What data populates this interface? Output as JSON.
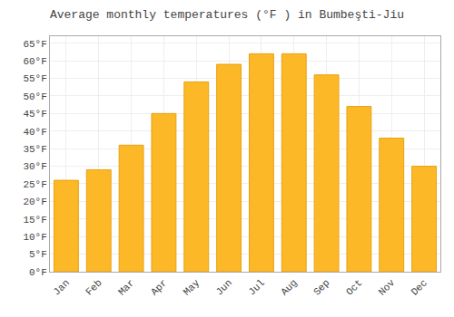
{
  "chart_data": {
    "type": "bar",
    "title": "Average monthly temperatures (°F ) in Bumbeşti-Jiu",
    "categories": [
      "Jan",
      "Feb",
      "Mar",
      "Apr",
      "May",
      "Jun",
      "Jul",
      "Aug",
      "Sep",
      "Oct",
      "Nov",
      "Dec"
    ],
    "values": [
      26,
      29,
      36,
      45,
      54,
      59,
      62,
      62,
      56,
      47,
      38,
      30
    ],
    "color": "#FDB827",
    "ylim": [
      0,
      67
    ],
    "yticks": [
      {
        "value": 0,
        "label": "0°F"
      },
      {
        "value": 5,
        "label": "5°F"
      },
      {
        "value": 10,
        "label": "10°F"
      },
      {
        "value": 15,
        "label": "15°F"
      },
      {
        "value": 20,
        "label": "20°F"
      },
      {
        "value": 25,
        "label": "25°F"
      },
      {
        "value": 30,
        "label": "30°F"
      },
      {
        "value": 35,
        "label": "35°F"
      },
      {
        "value": 40,
        "label": "40°F"
      },
      {
        "value": 45,
        "label": "45°F"
      },
      {
        "value": 50,
        "label": "50°F"
      },
      {
        "value": 55,
        "label": "55°F"
      },
      {
        "value": 60,
        "label": "60°F"
      },
      {
        "value": 65,
        "label": "65°F"
      }
    ],
    "grid": true
  }
}
